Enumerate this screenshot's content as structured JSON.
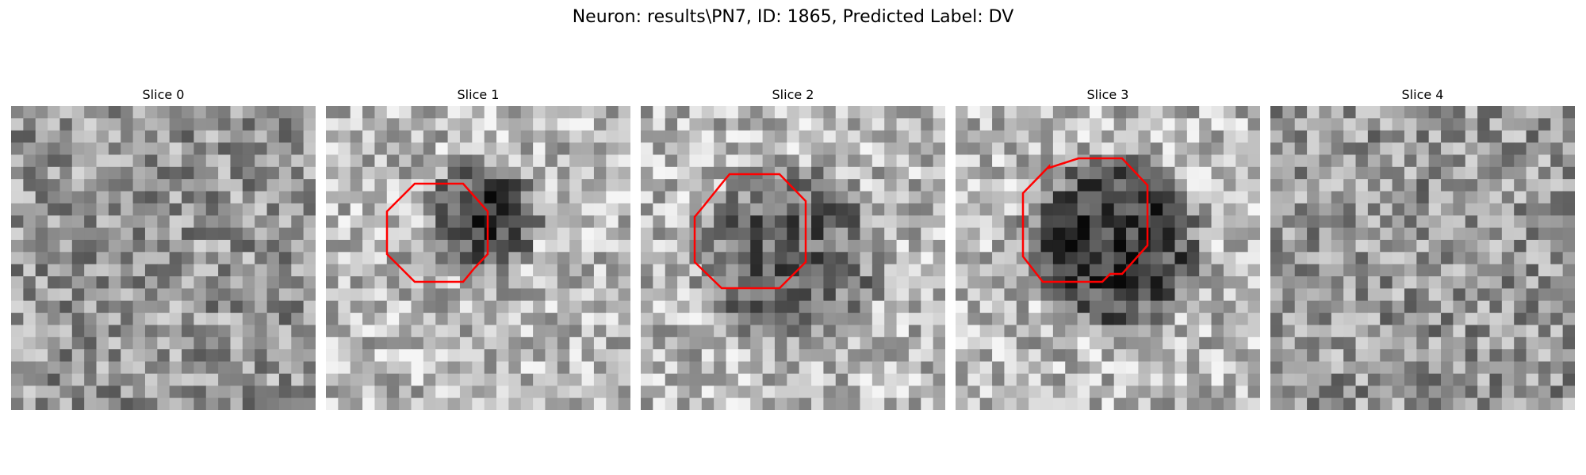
{
  "figure": {
    "title": "Neuron: results\\PN7, ID: 1865, Predicted Label: DV"
  },
  "colors": {
    "contour": "#ff0000",
    "background": "#ffffff"
  },
  "panels": [
    {
      "title": "Slice 0",
      "has_contour": false,
      "blob_strength": 0.0
    },
    {
      "title": "Slice 1",
      "has_contour": true,
      "blob_strength": 0.85
    },
    {
      "title": "Slice 2",
      "has_contour": true,
      "blob_strength": 0.6
    },
    {
      "title": "Slice 3",
      "has_contour": true,
      "blob_strength": 0.9
    },
    {
      "title": "Slice 4",
      "has_contour": false,
      "blob_strength": 0.0
    }
  ]
}
